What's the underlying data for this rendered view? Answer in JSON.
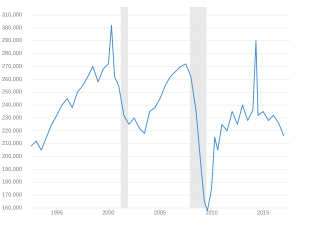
{
  "chart_data": {
    "type": "line",
    "x": [
      1992.5,
      1993,
      1993.5,
      1994,
      1994.5,
      1995,
      1995.5,
      1996,
      1996.5,
      1997,
      1997.5,
      1998,
      1998.5,
      1999,
      1999.5,
      2000,
      2000.3,
      2000.6,
      2001,
      2001.5,
      2002,
      2002.5,
      2003,
      2003.5,
      2004,
      2004.5,
      2005,
      2005.5,
      2006,
      2006.5,
      2007,
      2007.5,
      2008,
      2008.5,
      2009,
      2009.3,
      2009.6,
      2010,
      2010.3,
      2010.6,
      2011,
      2011.5,
      2012,
      2012.5,
      2013,
      2013.5,
      2014,
      2014.3,
      2014.5,
      2015,
      2015.5,
      2016,
      2016.5,
      2017
    ],
    "series": [
      {
        "color": "#3d8bd0",
        "values": [
          208000,
          212000,
          205000,
          215000,
          225000,
          232000,
          240000,
          245000,
          238000,
          250000,
          255000,
          262000,
          270000,
          258000,
          268000,
          272000,
          302000,
          262000,
          255000,
          232000,
          225000,
          230000,
          222000,
          218000,
          235000,
          238000,
          245000,
          255000,
          262000,
          266000,
          270000,
          272000,
          262000,
          235000,
          190000,
          165000,
          158000,
          175000,
          215000,
          205000,
          225000,
          220000,
          235000,
          225000,
          240000,
          228000,
          236000,
          290000,
          232000,
          235000,
          228000,
          232000,
          226000,
          216000
        ]
      }
    ],
    "shaded_regions": [
      [
        2001.2,
        2001.9
      ],
      [
        2007.9,
        2009.5
      ]
    ],
    "shade_color": "#e8e8e8",
    "xlim": [
      1992.5,
      2017.6
    ],
    "xticks": [
      1995,
      2000,
      2005,
      2010,
      2015
    ],
    "ylim": [
      160000,
      310000
    ],
    "yticks": [
      {
        "value": 160000,
        "label": "160,000"
      },
      {
        "value": 170000,
        "label": "170,000"
      },
      {
        "value": 180000,
        "label": "180,000"
      },
      {
        "value": 190000,
        "label": "190,000"
      },
      {
        "value": 200000,
        "label": "200,000"
      },
      {
        "value": 210000,
        "label": "210,000"
      },
      {
        "value": 220000,
        "label": "220,000"
      },
      {
        "value": 230000,
        "label": "230,000"
      },
      {
        "value": 240000,
        "label": "240,000"
      },
      {
        "value": 250000,
        "label": "250,000"
      },
      {
        "value": 260000,
        "label": "260,000"
      },
      {
        "value": 270000,
        "label": "270,000"
      },
      {
        "value": 280000,
        "label": "280,000"
      },
      {
        "value": 290000,
        "label": "290,000"
      },
      {
        "value": 300000,
        "label": "300,000"
      },
      {
        "value": 310000,
        "label": "310,000"
      }
    ],
    "grid": true
  }
}
